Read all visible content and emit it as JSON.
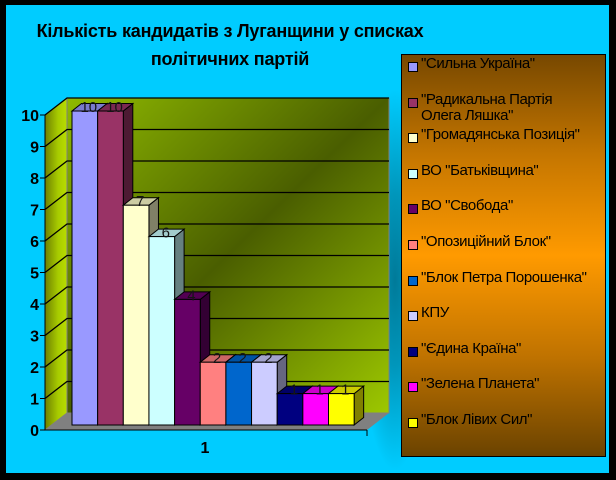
{
  "title": {
    "line1": "Кількість кандидатів з Луганщини у списках",
    "line2": "політичних партій"
  },
  "colors": {
    "background": "#00CCFF",
    "frame": "#000000",
    "back_wall_light": "#8FBA00",
    "back_wall_dark": "#4A5E00",
    "side_wall_dark": "#6E8000",
    "side_wall_light": "#B8DC00",
    "floor": "#808080",
    "legend_top": "#774800",
    "legend_middle": "#FF9A00"
  },
  "chart_data": {
    "type": "bar",
    "style": "3d-clustered-column",
    "title": "Кількість кандидатів з Луганщини у списках політичних партій",
    "xlabel": "",
    "ylabel": "",
    "categories": [
      "1"
    ],
    "ylim": [
      0,
      10
    ],
    "yticks": [
      "0",
      "1",
      "2",
      "3",
      "4",
      "5",
      "6",
      "7",
      "8",
      "9",
      "10"
    ],
    "grid": true,
    "legend_position": "right",
    "data_labels": true,
    "series": [
      {
        "name": "\"Сильна Україна\"",
        "values": [
          10
        ],
        "color": "#9999FF"
      },
      {
        "name": "\"Радикальна Партія Олега Ляшка\"",
        "values": [
          10
        ],
        "color": "#993366"
      },
      {
        "name": "\"Громадянська Позиція\"",
        "values": [
          7
        ],
        "color": "#FFFFCC"
      },
      {
        "name": "ВО \"Батьківщина\"",
        "values": [
          6
        ],
        "color": "#CCFFFF"
      },
      {
        "name": "ВО \"Свобода\"",
        "values": [
          4
        ],
        "color": "#660066"
      },
      {
        "name": "\"Опозиційний Блок\"",
        "values": [
          2
        ],
        "color": "#FF8080"
      },
      {
        "name": "\"Блок Петра Порошенка\"",
        "values": [
          2
        ],
        "color": "#0066CC"
      },
      {
        "name": "КПУ",
        "values": [
          2
        ],
        "color": "#CCCCFF"
      },
      {
        "name": "\"Єдина Країна\"",
        "values": [
          1
        ],
        "color": "#000080"
      },
      {
        "name": "\"Зелена Планета\"",
        "values": [
          1
        ],
        "color": "#FF00FF"
      },
      {
        "name": "\"Блок Лівих Сил\"",
        "values": [
          1
        ],
        "color": "#FFFF00"
      }
    ]
  },
  "legend": {
    "items": [
      {
        "label": "\"Сильна Україна\"",
        "color": "#9999FF"
      },
      {
        "label": "\"Радикальна Партія\nОлега Ляшка\"",
        "color": "#993366"
      },
      {
        "label": "\"Громадянська Позиція\"",
        "color": "#FFFFCC"
      },
      {
        "label": "ВО \"Батьківщина\"",
        "color": "#CCFFFF"
      },
      {
        "label": "ВО \"Свобода\"",
        "color": "#660066"
      },
      {
        "label": "\"Опозиційний Блок\"",
        "color": "#FF8080"
      },
      {
        "label": "\"Блок Петра Порошенка\"",
        "color": "#0066CC"
      },
      {
        "label": "КПУ",
        "color": "#CCCCFF"
      },
      {
        "label": "\"Єдина Країна\"",
        "color": "#000080"
      },
      {
        "label": "\"Зелена Планета\"",
        "color": "#FF00FF"
      },
      {
        "label": "\"Блок Лівих Сил\"",
        "color": "#FFFF00"
      }
    ]
  }
}
